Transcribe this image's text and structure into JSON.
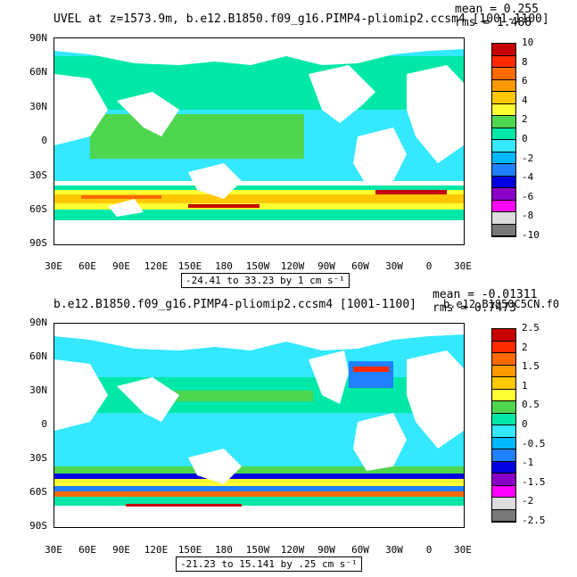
{
  "panels": [
    {
      "id": "top",
      "title": "UVEL at z=1573.9m, b.e12.B1850.f09_g16.PIMP4-pliomip2.ccsm4 [1001-1100]",
      "mean_label": "mean = 0.255",
      "rms_label": "rms = 1.488",
      "range_label": "-24.41 to 33.23 by 1 cm s⁻¹",
      "y_ticks": [
        "90N",
        "60N",
        "30N",
        "0",
        "30S",
        "60S",
        "90S"
      ],
      "x_ticks": [
        "30E",
        "60E",
        "90E",
        "120E",
        "150E",
        "180",
        "150W",
        "120W",
        "90W",
        "60W",
        "30W",
        "0",
        "30E"
      ],
      "colorbar_labels": [
        "10",
        "8",
        "6",
        "4",
        "2",
        "0",
        "-2",
        "-4",
        "-6",
        "-8",
        "-10"
      ],
      "colorbar_colors": [
        "#c80000",
        "#ff2a00",
        "#ff6a00",
        "#ff9900",
        "#ffc800",
        "#ffff33",
        "#4fd64f",
        "#00e8a8",
        "#33e8ff",
        "#00b8ff",
        "#2080ff",
        "#0000e0",
        "#8a00c8",
        "#ff00ff",
        "#dcdcdc",
        "#787878"
      ]
    },
    {
      "id": "bottom",
      "title": "b.e12.B1850.f09_g16.PIMP4-pliomip2.ccsm4 [1001-1100]",
      "right_title": "b.e12.B1850C5CN.f0",
      "mean_label": "mean = -0.01311",
      "rms_label": "rms = 0.7473",
      "range_label": "-21.23 to 15.141 by .25 cm s⁻¹",
      "y_ticks": [
        "90N",
        "60N",
        "30N",
        "0",
        "30S",
        "60S",
        "90S"
      ],
      "x_ticks": [
        "30E",
        "60E",
        "90E",
        "120E",
        "150E",
        "180",
        "150W",
        "120W",
        "90W",
        "60W",
        "30W",
        "0",
        "30E"
      ],
      "colorbar_labels": [
        "2.5",
        "2",
        "1.5",
        "1",
        "0.5",
        "0",
        "-0.5",
        "-1",
        "-1.5",
        "-2",
        "-2.5"
      ],
      "colorbar_colors": [
        "#c80000",
        "#ff2a00",
        "#ff6a00",
        "#ff9900",
        "#ffc800",
        "#ffff33",
        "#4fd64f",
        "#00e8a8",
        "#33e8ff",
        "#00b8ff",
        "#2080ff",
        "#0000e0",
        "#8a00c8",
        "#ff00ff",
        "#dcdcdc",
        "#787878"
      ]
    }
  ]
}
